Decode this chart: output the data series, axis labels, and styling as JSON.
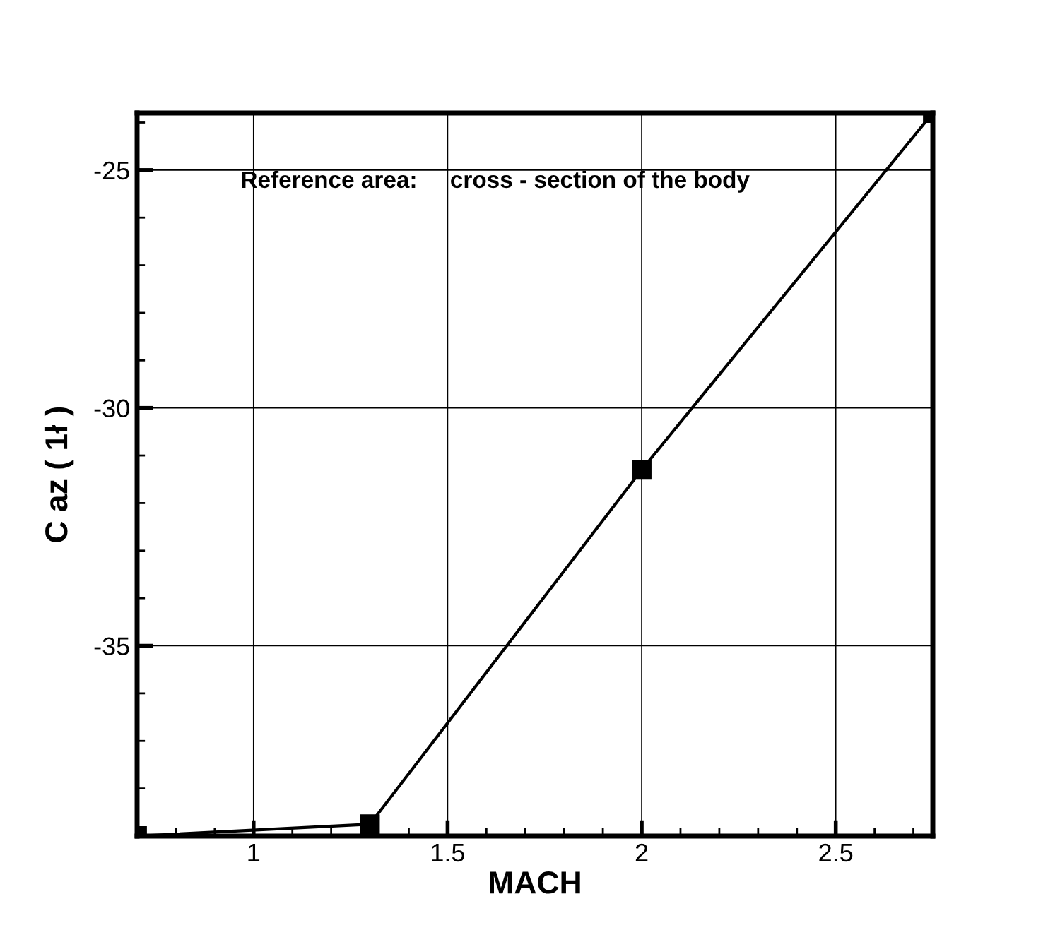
{
  "chart_data": {
    "type": "line",
    "xlabel": "MACH",
    "ylabel": "C az ( 1ł )",
    "annotations": [
      "Reference area:     cross - section of the body"
    ],
    "x": [
      0.7,
      1.3,
      2.0,
      2.75
    ],
    "series": [
      {
        "color": "#000000",
        "values": [
          -39.0,
          -38.75,
          -31.3,
          -23.8
        ]
      }
    ],
    "xlim": [
      0.7,
      2.75
    ],
    "ylim": [
      -39,
      -23.8
    ],
    "xticks": [
      1,
      1.5,
      2,
      2.5
    ],
    "yticks": [
      -25,
      -30,
      -35
    ],
    "grid": true,
    "marker": "square",
    "line_style": "solid",
    "legend": false
  }
}
